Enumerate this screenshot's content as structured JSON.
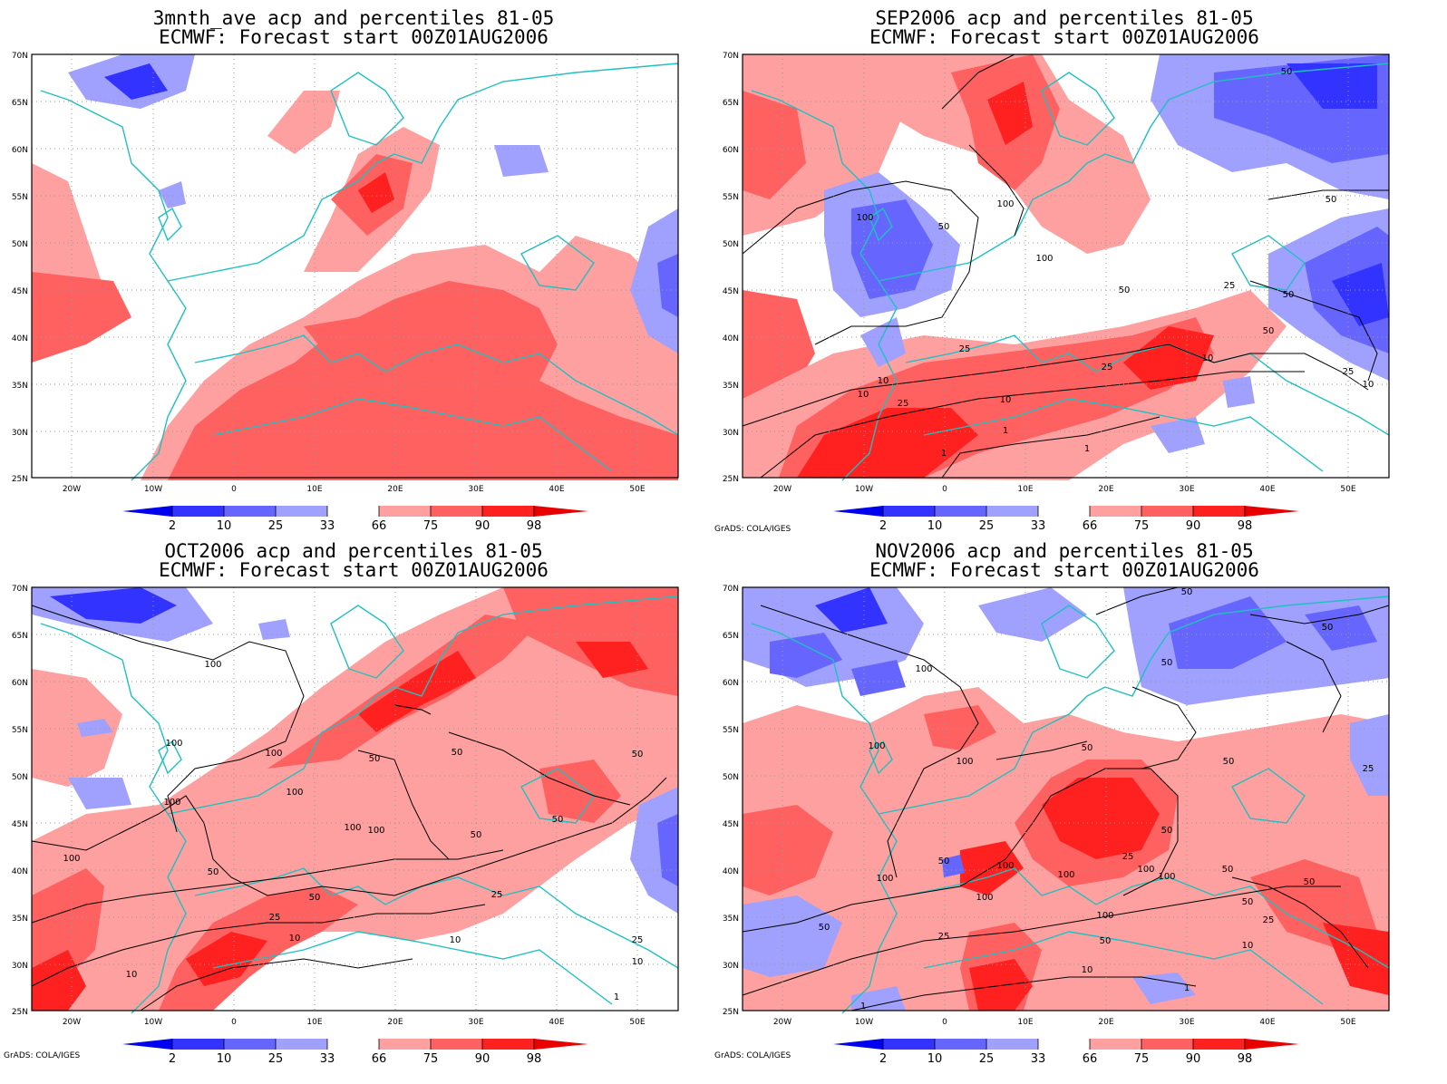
{
  "figure": {
    "credit": "GrADS: COLA/IGES",
    "lat_ticks": [
      "70N",
      "65N",
      "60N",
      "55N",
      "50N",
      "45N",
      "40N",
      "35N",
      "30N",
      "25N"
    ],
    "lon_ticks": [
      "20W",
      "10W",
      "0",
      "10E",
      "20E",
      "30E",
      "40E",
      "50E"
    ],
    "colorbar": {
      "labels": [
        "2",
        "10",
        "25",
        "33",
        "66",
        "75",
        "90",
        "98"
      ],
      "colors": {
        "below_2": "#0000f0",
        "p2_10": "#3333ff",
        "p10_25": "#6666ff",
        "p25_33": "#a0a0ff",
        "p33_66": "#ffffff",
        "p66_75": "#ffa0a0",
        "p75_90": "#ff6060",
        "p90_98": "#ff2020",
        "above_98": "#e80000"
      }
    },
    "coastline_color": "#20c0c0",
    "contour_color": "#000000"
  },
  "panels": [
    {
      "title_line1": "3mnth_ave acp and percentiles 81-05",
      "title_line2": "ECMWF: Forecast start 00Z01AUG2006",
      "contour_labels": []
    },
    {
      "title_line1": "SEP2006 acp and percentiles 81-05",
      "title_line2": "ECMWF: Forecast start 00Z01AUG2006",
      "contour_labels": [
        "50",
        "100",
        "50",
        "100",
        "50",
        "50",
        "25",
        "50",
        "50",
        "25",
        "10",
        "10",
        "25",
        "10",
        "25",
        "10",
        "1",
        "1",
        "1",
        "10",
        "25",
        "100"
      ]
    },
    {
      "title_line1": "OCT2006 acp and percentiles 81-05",
      "title_line2": "ECMWF: Forecast start 00Z01AUG2006",
      "contour_labels": [
        "100",
        "100",
        "100",
        "50",
        "100",
        "100",
        "100",
        "100",
        "50",
        "50",
        "50",
        "50",
        "50",
        "25",
        "10",
        "25",
        "10",
        "50",
        "25",
        "10",
        "10",
        "1",
        "100"
      ]
    },
    {
      "title_line1": "NOV2006 acp and percentiles 81-05",
      "title_line2": "ECMWF: Forecast start 00Z01AUG2006",
      "contour_labels": [
        "50",
        "50",
        "50",
        "100",
        "100",
        "50",
        "50",
        "100",
        "25",
        "50",
        "100",
        "100",
        "100",
        "100",
        "100",
        "100",
        "50",
        "50",
        "50",
        "50",
        "25",
        "25",
        "50",
        "10",
        "10",
        "1",
        "1",
        "50",
        "25",
        "100"
      ]
    }
  ]
}
